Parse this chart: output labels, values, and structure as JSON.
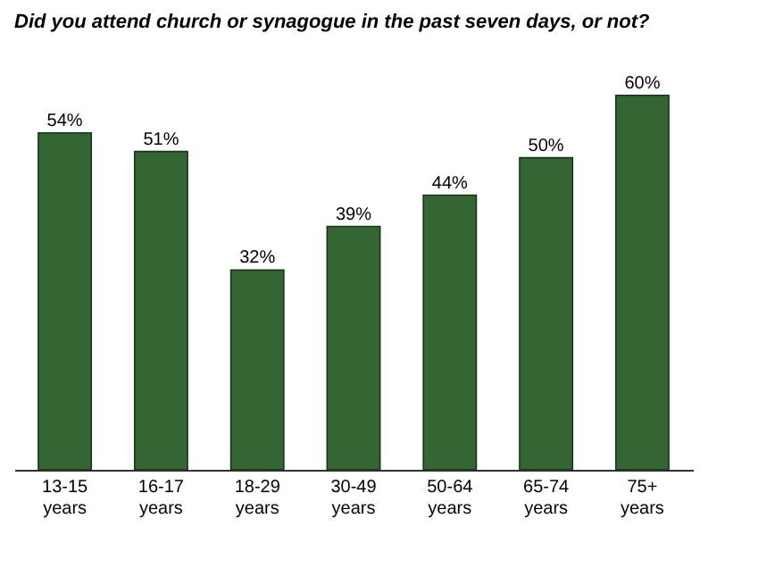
{
  "chart_data": {
    "type": "bar",
    "title": "Did you attend church or synagogue in the past seven days, or not?",
    "categories": [
      "13-15 years",
      "16-17 years",
      "18-29 years",
      "30-49 years",
      "50-64 years",
      "65-74 years",
      "75+ years"
    ],
    "values": [
      54,
      51,
      32,
      39,
      44,
      50,
      60
    ],
    "value_labels": [
      "54%",
      "51%",
      "32%",
      "39%",
      "44%",
      "50%",
      "60%"
    ],
    "color": "#336633",
    "grid": false
  }
}
